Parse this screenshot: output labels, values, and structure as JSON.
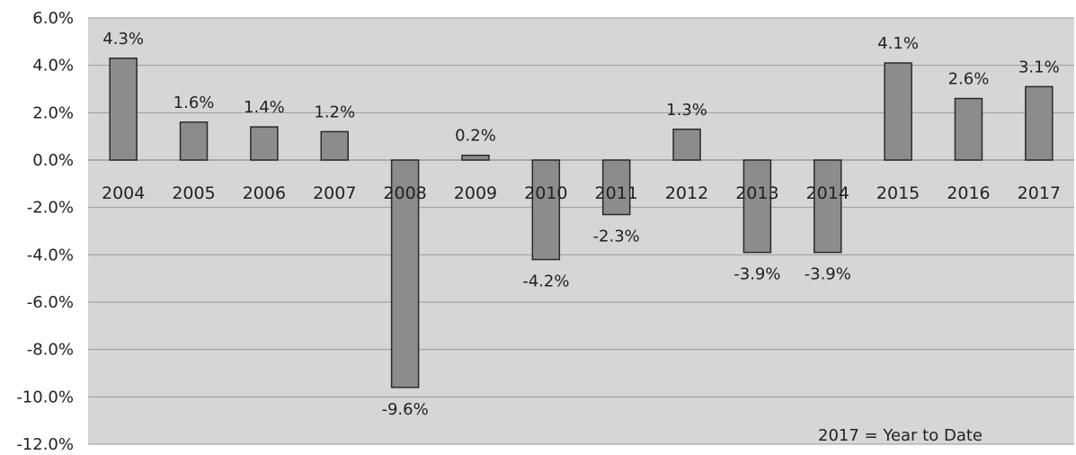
{
  "chart_data": {
    "type": "bar",
    "title": "",
    "xlabel": "",
    "ylabel": "",
    "categories": [
      "2004",
      "2005",
      "2006",
      "2007",
      "2008",
      "2009",
      "2010",
      "2011",
      "2012",
      "2013",
      "2014",
      "2015",
      "2016",
      "2017"
    ],
    "values": [
      4.3,
      1.6,
      1.4,
      1.2,
      -9.6,
      0.2,
      -4.2,
      -2.3,
      1.3,
      -3.9,
      -3.9,
      4.1,
      2.6,
      3.1
    ],
    "data_labels": [
      "4.3%",
      "1.6%",
      "1.4%",
      "1.2%",
      "-9.6%",
      "0.2%",
      "-4.2%",
      "-2.3%",
      "1.3%",
      "-3.9%",
      "-3.9%",
      "4.1%",
      "2.6%",
      "3.1%"
    ],
    "ylim": [
      -12.0,
      6.0
    ],
    "y_ticks": [
      "6.0%",
      "4.0%",
      "2.0%",
      "0.0%",
      "-2.0%",
      "-4.0%",
      "-6.0%",
      "-8.0%",
      "-10.0%",
      "-12.0%"
    ],
    "y_tick_values": [
      6,
      4,
      2,
      0,
      -2,
      -4,
      -6,
      -8,
      -10,
      -12
    ],
    "grid": true,
    "legend": "none",
    "annotation": "2017 = Year to Date",
    "colors": {
      "plot_background": "#d6d6d6",
      "bar_fill": "#8c8c8c",
      "bar_stroke": "#2a2a2a",
      "gridline": "#9a9a9a"
    }
  }
}
